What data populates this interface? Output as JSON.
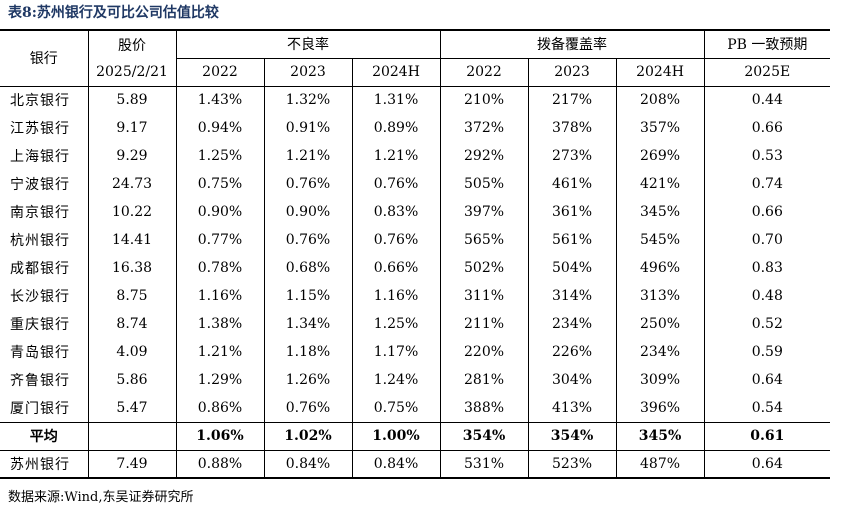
{
  "title": "表8:苏州银行及可比公司估值比较",
  "headers": {
    "bank": "银行",
    "price": "股价",
    "price_date": "2025/2/21",
    "npl": "不良率",
    "coverage": "拨备覆盖率",
    "pb": "PB 一致预期",
    "years": [
      "2022",
      "2023",
      "2024H"
    ],
    "pb_year": "2025E"
  },
  "rows": [
    {
      "bank": "北京银行",
      "price": "5.89",
      "npl": [
        "1.43%",
        "1.32%",
        "1.31%"
      ],
      "cov": [
        "210%",
        "217%",
        "208%"
      ],
      "pb": "0.44"
    },
    {
      "bank": "江苏银行",
      "price": "9.17",
      "npl": [
        "0.94%",
        "0.91%",
        "0.89%"
      ],
      "cov": [
        "372%",
        "378%",
        "357%"
      ],
      "pb": "0.66"
    },
    {
      "bank": "上海银行",
      "price": "9.29",
      "npl": [
        "1.25%",
        "1.21%",
        "1.21%"
      ],
      "cov": [
        "292%",
        "273%",
        "269%"
      ],
      "pb": "0.53"
    },
    {
      "bank": "宁波银行",
      "price": "24.73",
      "npl": [
        "0.75%",
        "0.76%",
        "0.76%"
      ],
      "cov": [
        "505%",
        "461%",
        "421%"
      ],
      "pb": "0.74"
    },
    {
      "bank": "南京银行",
      "price": "10.22",
      "npl": [
        "0.90%",
        "0.90%",
        "0.83%"
      ],
      "cov": [
        "397%",
        "361%",
        "345%"
      ],
      "pb": "0.66"
    },
    {
      "bank": "杭州银行",
      "price": "14.41",
      "npl": [
        "0.77%",
        "0.76%",
        "0.76%"
      ],
      "cov": [
        "565%",
        "561%",
        "545%"
      ],
      "pb": "0.70"
    },
    {
      "bank": "成都银行",
      "price": "16.38",
      "npl": [
        "0.78%",
        "0.68%",
        "0.66%"
      ],
      "cov": [
        "502%",
        "504%",
        "496%"
      ],
      "pb": "0.83"
    },
    {
      "bank": "长沙银行",
      "price": "8.75",
      "npl": [
        "1.16%",
        "1.15%",
        "1.16%"
      ],
      "cov": [
        "311%",
        "314%",
        "313%"
      ],
      "pb": "0.48"
    },
    {
      "bank": "重庆银行",
      "price": "8.74",
      "npl": [
        "1.38%",
        "1.34%",
        "1.25%"
      ],
      "cov": [
        "211%",
        "234%",
        "250%"
      ],
      "pb": "0.52"
    },
    {
      "bank": "青岛银行",
      "price": "4.09",
      "npl": [
        "1.21%",
        "1.18%",
        "1.17%"
      ],
      "cov": [
        "220%",
        "226%",
        "234%"
      ],
      "pb": "0.59"
    },
    {
      "bank": "齐鲁银行",
      "price": "5.86",
      "npl": [
        "1.29%",
        "1.26%",
        "1.24%"
      ],
      "cov": [
        "281%",
        "304%",
        "309%"
      ],
      "pb": "0.64"
    },
    {
      "bank": "厦门银行",
      "price": "5.47",
      "npl": [
        "0.86%",
        "0.76%",
        "0.75%"
      ],
      "cov": [
        "388%",
        "413%",
        "396%"
      ],
      "pb": "0.54"
    }
  ],
  "average": {
    "label": "平均",
    "price": "",
    "npl": [
      "1.06%",
      "1.02%",
      "1.00%"
    ],
    "cov": [
      "354%",
      "354%",
      "345%"
    ],
    "pb": "0.61"
  },
  "target": {
    "bank": "苏州银行",
    "price": "7.49",
    "npl": [
      "0.88%",
      "0.84%",
      "0.84%"
    ],
    "cov": [
      "531%",
      "523%",
      "487%"
    ],
    "pb": "0.64"
  },
  "source": "数据来源:Wind,东吴证券研究所"
}
